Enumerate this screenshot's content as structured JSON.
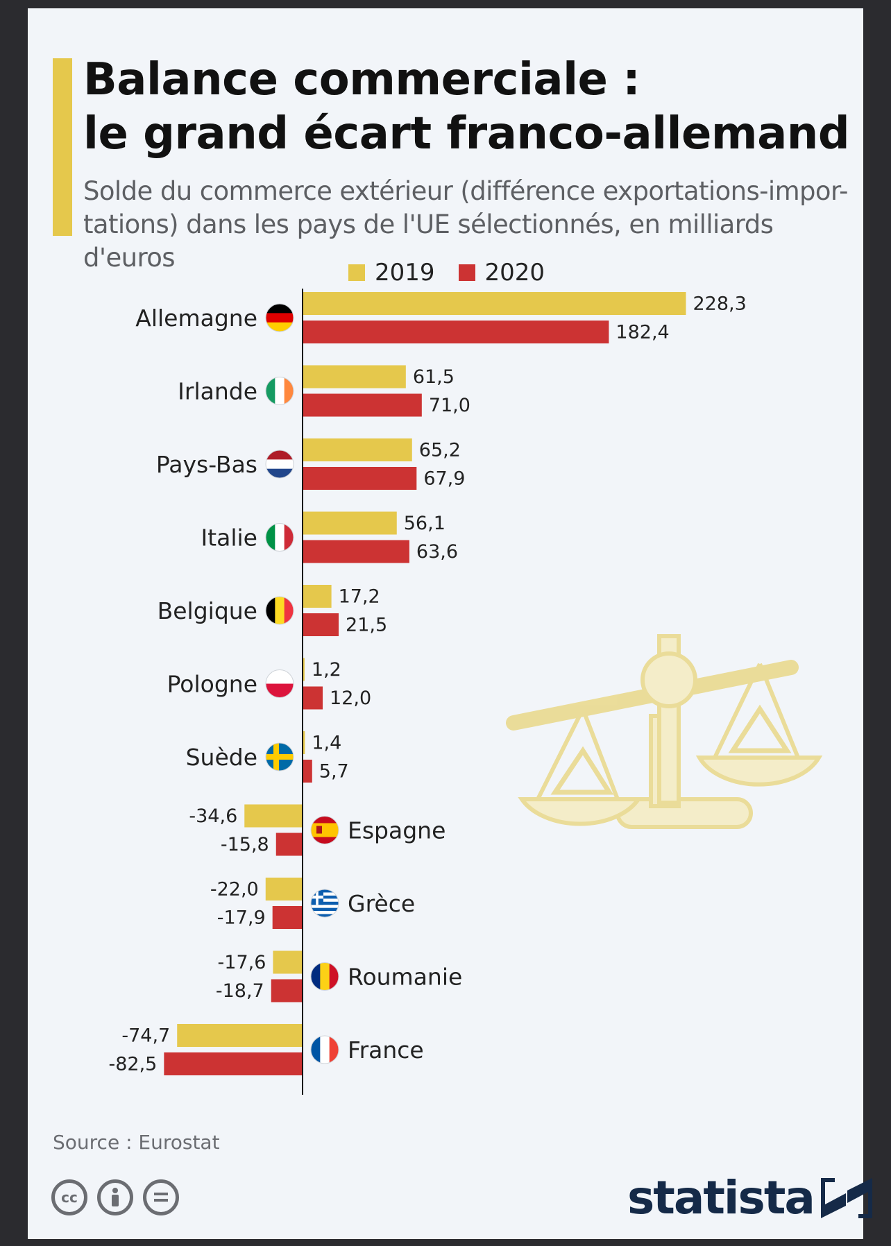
{
  "title_lines": [
    "Balance commerciale :",
    "le grand écart franco-allemand"
  ],
  "subtitle_lines": [
    "Solde du commerce extérieur (différence exportations-impor-",
    "tations) dans les pays de l'UE sélectionnés, en milliards d'euros"
  ],
  "source": "Source : Eurostat",
  "brand": "statista",
  "colors": {
    "y2019": "#e5c84c",
    "y2020": "#cc3333",
    "accent": "#e5c84c",
    "brand": "#152a48"
  },
  "cc_icons": [
    "creative-commons-icon",
    "attribution-icon",
    "no-derivatives-icon"
  ],
  "chart_data": {
    "type": "bar",
    "orientation": "horizontal",
    "categories": [
      "Allemagne",
      "Irlande",
      "Pays-Bas",
      "Italie",
      "Belgique",
      "Pologne",
      "Suède",
      "Espagne",
      "Grèce",
      "Roumanie",
      "France"
    ],
    "series": [
      {
        "name": "2019",
        "color": "#e5c84c",
        "values": [
          228.3,
          61.5,
          65.2,
          56.1,
          17.2,
          1.2,
          1.4,
          -34.6,
          -22.0,
          -17.6,
          -74.7
        ]
      },
      {
        "name": "2020",
        "color": "#cc3333",
        "values": [
          182.4,
          71.0,
          67.9,
          63.6,
          21.5,
          12.0,
          5.7,
          -15.8,
          -17.9,
          -18.7,
          -82.5
        ]
      }
    ],
    "value_labels": [
      [
        "228,3",
        "61,5",
        "65,2",
        "56,1",
        "17,2",
        "1,2",
        "1,4",
        "-34,6",
        "-22,0",
        "-17,6",
        "-74,7"
      ],
      [
        "182,4",
        "71,0",
        "67,9",
        "63,6",
        "21,5",
        "12,0",
        "5,7",
        "-15,8",
        "-17,9",
        "-18,7",
        "-82,5"
      ]
    ],
    "flags": [
      "germany-flag-icon",
      "ireland-flag-icon",
      "netherlands-flag-icon",
      "italy-flag-icon",
      "belgium-flag-icon",
      "poland-flag-icon",
      "sweden-flag-icon",
      "spain-flag-icon",
      "greece-flag-icon",
      "romania-flag-icon",
      "france-flag-icon"
    ],
    "legend_position": "top",
    "grid": false,
    "decoration": "scale-balance-icon"
  }
}
